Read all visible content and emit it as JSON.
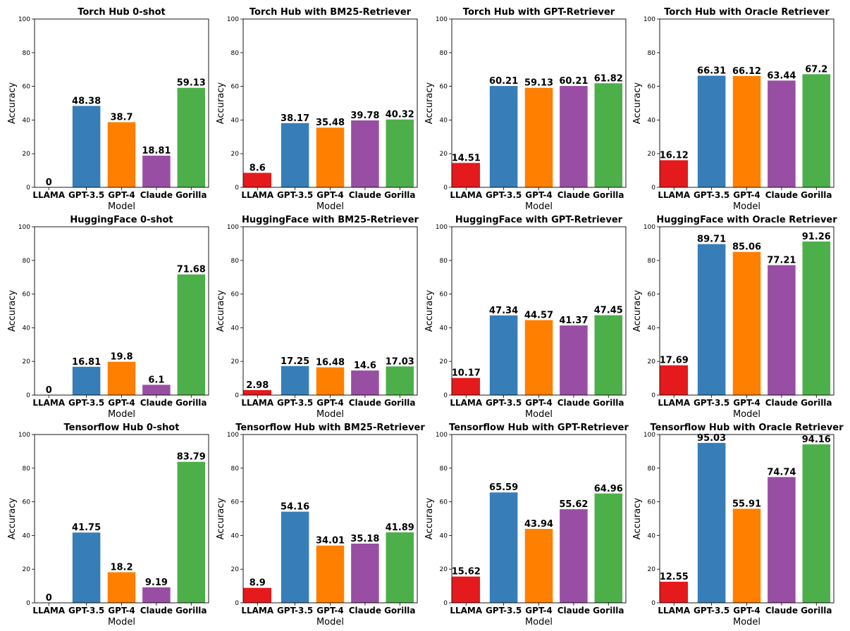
{
  "chart_data": [
    {
      "type": "bar",
      "title": "Torch Hub 0-shot",
      "xlabel": "Model",
      "ylabel": "Accuracy",
      "ylim": [
        0,
        100
      ],
      "yticks": [
        0,
        20,
        40,
        60,
        80,
        100
      ],
      "categories": [
        "LLAMA",
        "GPT-3.5",
        "GPT-4",
        "Claude",
        "Gorilla"
      ],
      "values": [
        0,
        48.38,
        38.7,
        18.81,
        59.13
      ],
      "colors": [
        "#e41a1c",
        "#377eb8",
        "#ff7f00",
        "#984ea3",
        "#4daf4a"
      ]
    },
    {
      "type": "bar",
      "title": "Torch Hub with BM25-Retriever",
      "xlabel": "Model",
      "ylabel": "Accuracy",
      "ylim": [
        0,
        100
      ],
      "yticks": [
        0,
        20,
        40,
        60,
        80,
        100
      ],
      "categories": [
        "LLAMA",
        "GPT-3.5",
        "GPT-4",
        "Claude",
        "Gorilla"
      ],
      "values": [
        8.6,
        38.17,
        35.48,
        39.78,
        40.32
      ],
      "colors": [
        "#e41a1c",
        "#377eb8",
        "#ff7f00",
        "#984ea3",
        "#4daf4a"
      ]
    },
    {
      "type": "bar",
      "title": "Torch Hub with GPT-Retriever",
      "xlabel": "Model",
      "ylabel": "Accuracy",
      "ylim": [
        0,
        100
      ],
      "yticks": [
        0,
        20,
        40,
        60,
        80,
        100
      ],
      "categories": [
        "LLAMA",
        "GPT-3.5",
        "GPT-4",
        "Claude",
        "Gorilla"
      ],
      "values": [
        14.51,
        60.21,
        59.13,
        60.21,
        61.82
      ],
      "colors": [
        "#e41a1c",
        "#377eb8",
        "#ff7f00",
        "#984ea3",
        "#4daf4a"
      ]
    },
    {
      "type": "bar",
      "title": "Torch Hub with Oracle Retriever",
      "xlabel": "Model",
      "ylabel": "Accuracy",
      "ylim": [
        0,
        100
      ],
      "yticks": [
        0,
        20,
        40,
        60,
        80,
        100
      ],
      "categories": [
        "LLAMA",
        "GPT-3.5",
        "GPT-4",
        "Claude",
        "Gorilla"
      ],
      "values": [
        16.12,
        66.31,
        66.12,
        63.44,
        67.2
      ],
      "colors": [
        "#e41a1c",
        "#377eb8",
        "#ff7f00",
        "#984ea3",
        "#4daf4a"
      ]
    },
    {
      "type": "bar",
      "title": "HuggingFace 0-shot",
      "xlabel": "Model",
      "ylabel": "Accuracy",
      "ylim": [
        0,
        100
      ],
      "yticks": [
        0,
        20,
        40,
        60,
        80,
        100
      ],
      "categories": [
        "LLAMA",
        "GPT-3.5",
        "GPT-4",
        "Claude",
        "Gorilla"
      ],
      "values": [
        0,
        16.81,
        19.8,
        6.1,
        71.68
      ],
      "colors": [
        "#e41a1c",
        "#377eb8",
        "#ff7f00",
        "#984ea3",
        "#4daf4a"
      ]
    },
    {
      "type": "bar",
      "title": "HuggingFace with BM25-Retriever",
      "xlabel": "Model",
      "ylabel": "Accuracy",
      "ylim": [
        0,
        100
      ],
      "yticks": [
        0,
        20,
        40,
        60,
        80,
        100
      ],
      "categories": [
        "LLAMA",
        "GPT-3.5",
        "GPT-4",
        "Claude",
        "Gorilla"
      ],
      "values": [
        2.98,
        17.25,
        16.48,
        14.6,
        17.03
      ],
      "colors": [
        "#e41a1c",
        "#377eb8",
        "#ff7f00",
        "#984ea3",
        "#4daf4a"
      ]
    },
    {
      "type": "bar",
      "title": "HuggingFace with GPT-Retriever",
      "xlabel": "Model",
      "ylabel": "Accuracy",
      "ylim": [
        0,
        100
      ],
      "yticks": [
        0,
        20,
        40,
        60,
        80,
        100
      ],
      "categories": [
        "LLAMA",
        "GPT-3.5",
        "GPT-4",
        "Claude",
        "Gorilla"
      ],
      "values": [
        10.17,
        47.34,
        44.57,
        41.37,
        47.45
      ],
      "colors": [
        "#e41a1c",
        "#377eb8",
        "#ff7f00",
        "#984ea3",
        "#4daf4a"
      ]
    },
    {
      "type": "bar",
      "title": "HuggingFace with Oracle Retriever",
      "xlabel": "Model",
      "ylabel": "Accuracy",
      "ylim": [
        0,
        100
      ],
      "yticks": [
        0,
        20,
        40,
        60,
        80,
        100
      ],
      "categories": [
        "LLAMA",
        "GPT-3.5",
        "GPT-4",
        "Claude",
        "Gorilla"
      ],
      "values": [
        17.69,
        89.71,
        85.06,
        77.21,
        91.26
      ],
      "colors": [
        "#e41a1c",
        "#377eb8",
        "#ff7f00",
        "#984ea3",
        "#4daf4a"
      ]
    },
    {
      "type": "bar",
      "title": "Tensorflow Hub 0-shot",
      "xlabel": "Model",
      "ylabel": "Accuracy",
      "ylim": [
        0,
        100
      ],
      "yticks": [
        0,
        20,
        40,
        60,
        80,
        100
      ],
      "categories": [
        "LLAMA",
        "GPT-3.5",
        "GPT-4",
        "Claude",
        "Gorilla"
      ],
      "values": [
        0,
        41.75,
        18.2,
        9.19,
        83.79
      ],
      "colors": [
        "#e41a1c",
        "#377eb8",
        "#ff7f00",
        "#984ea3",
        "#4daf4a"
      ]
    },
    {
      "type": "bar",
      "title": "Tensorflow Hub with BM25-Retriever",
      "xlabel": "Model",
      "ylabel": "Accuracy",
      "ylim": [
        0,
        100
      ],
      "yticks": [
        0,
        20,
        40,
        60,
        80,
        100
      ],
      "categories": [
        "LLAMA",
        "GPT-3.5",
        "GPT-4",
        "Claude",
        "Gorilla"
      ],
      "values": [
        8.9,
        54.16,
        34.01,
        35.18,
        41.89
      ],
      "colors": [
        "#e41a1c",
        "#377eb8",
        "#ff7f00",
        "#984ea3",
        "#4daf4a"
      ]
    },
    {
      "type": "bar",
      "title": "Tensorflow Hub with GPT-Retriever",
      "xlabel": "Model",
      "ylabel": "Accuracy",
      "ylim": [
        0,
        100
      ],
      "yticks": [
        0,
        20,
        40,
        60,
        80,
        100
      ],
      "categories": [
        "LLAMA",
        "GPT-3.5",
        "GPT-4",
        "Claude",
        "Gorilla"
      ],
      "values": [
        15.62,
        65.59,
        43.94,
        55.62,
        64.96
      ],
      "colors": [
        "#e41a1c",
        "#377eb8",
        "#ff7f00",
        "#984ea3",
        "#4daf4a"
      ]
    },
    {
      "type": "bar",
      "title": "Tensorflow Hub with Oracle Retriever",
      "xlabel": "Model",
      "ylabel": "Accuracy",
      "ylim": [
        0,
        100
      ],
      "yticks": [
        0,
        20,
        40,
        60,
        80,
        100
      ],
      "categories": [
        "LLAMA",
        "GPT-3.5",
        "GPT-4",
        "Claude",
        "Gorilla"
      ],
      "values": [
        12.55,
        95.03,
        55.91,
        74.74,
        94.16
      ],
      "colors": [
        "#e41a1c",
        "#377eb8",
        "#ff7f00",
        "#984ea3",
        "#4daf4a"
      ]
    }
  ]
}
